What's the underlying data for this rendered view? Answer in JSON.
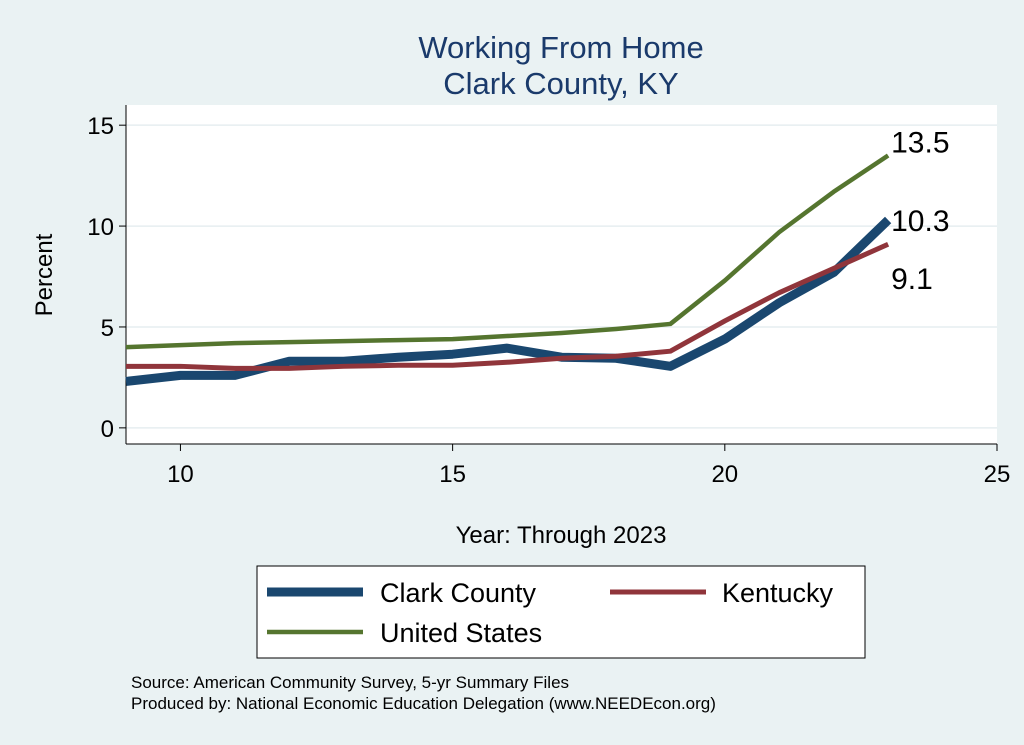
{
  "chart_data": {
    "type": "line",
    "title": "Working From Home",
    "subtitle": "Clark County, KY",
    "xlabel": "Year: Through 2023",
    "ylabel": "Percent",
    "xlim": [
      9,
      25
    ],
    "ylim": [
      -0.8,
      16
    ],
    "xticks": [
      10,
      15,
      20,
      25
    ],
    "yticks": [
      0,
      5,
      10,
      15
    ],
    "grid": true,
    "legend_position": "bottom",
    "x": [
      9,
      10,
      11,
      12,
      13,
      14,
      15,
      16,
      17,
      18,
      19,
      20,
      21,
      22,
      23
    ],
    "series": [
      {
        "name": "Clark County",
        "color": "#1a476f",
        "values": [
          2.3,
          2.6,
          2.6,
          3.3,
          3.3,
          3.5,
          3.65,
          3.95,
          3.5,
          3.45,
          3.05,
          4.4,
          6.2,
          7.7,
          10.3
        ],
        "end_label": "10.3"
      },
      {
        "name": "Kentucky",
        "color": "#90353b",
        "values": [
          3.05,
          3.05,
          2.95,
          2.95,
          3.05,
          3.1,
          3.1,
          3.25,
          3.45,
          3.55,
          3.8,
          5.3,
          6.7,
          7.9,
          9.1
        ],
        "end_label": "9.1"
      },
      {
        "name": "United States",
        "color": "#55752f",
        "values": [
          4.0,
          4.1,
          4.2,
          4.25,
          4.3,
          4.35,
          4.4,
          4.55,
          4.7,
          4.9,
          5.15,
          7.3,
          9.7,
          11.7,
          13.5
        ],
        "end_label": "13.5"
      }
    ]
  },
  "footer": {
    "source": "Source: American Community Survey, 5-yr Summary Files",
    "produced_by": "Produced by: National Economic Education Delegation (www.NEEDEcon.org)"
  }
}
